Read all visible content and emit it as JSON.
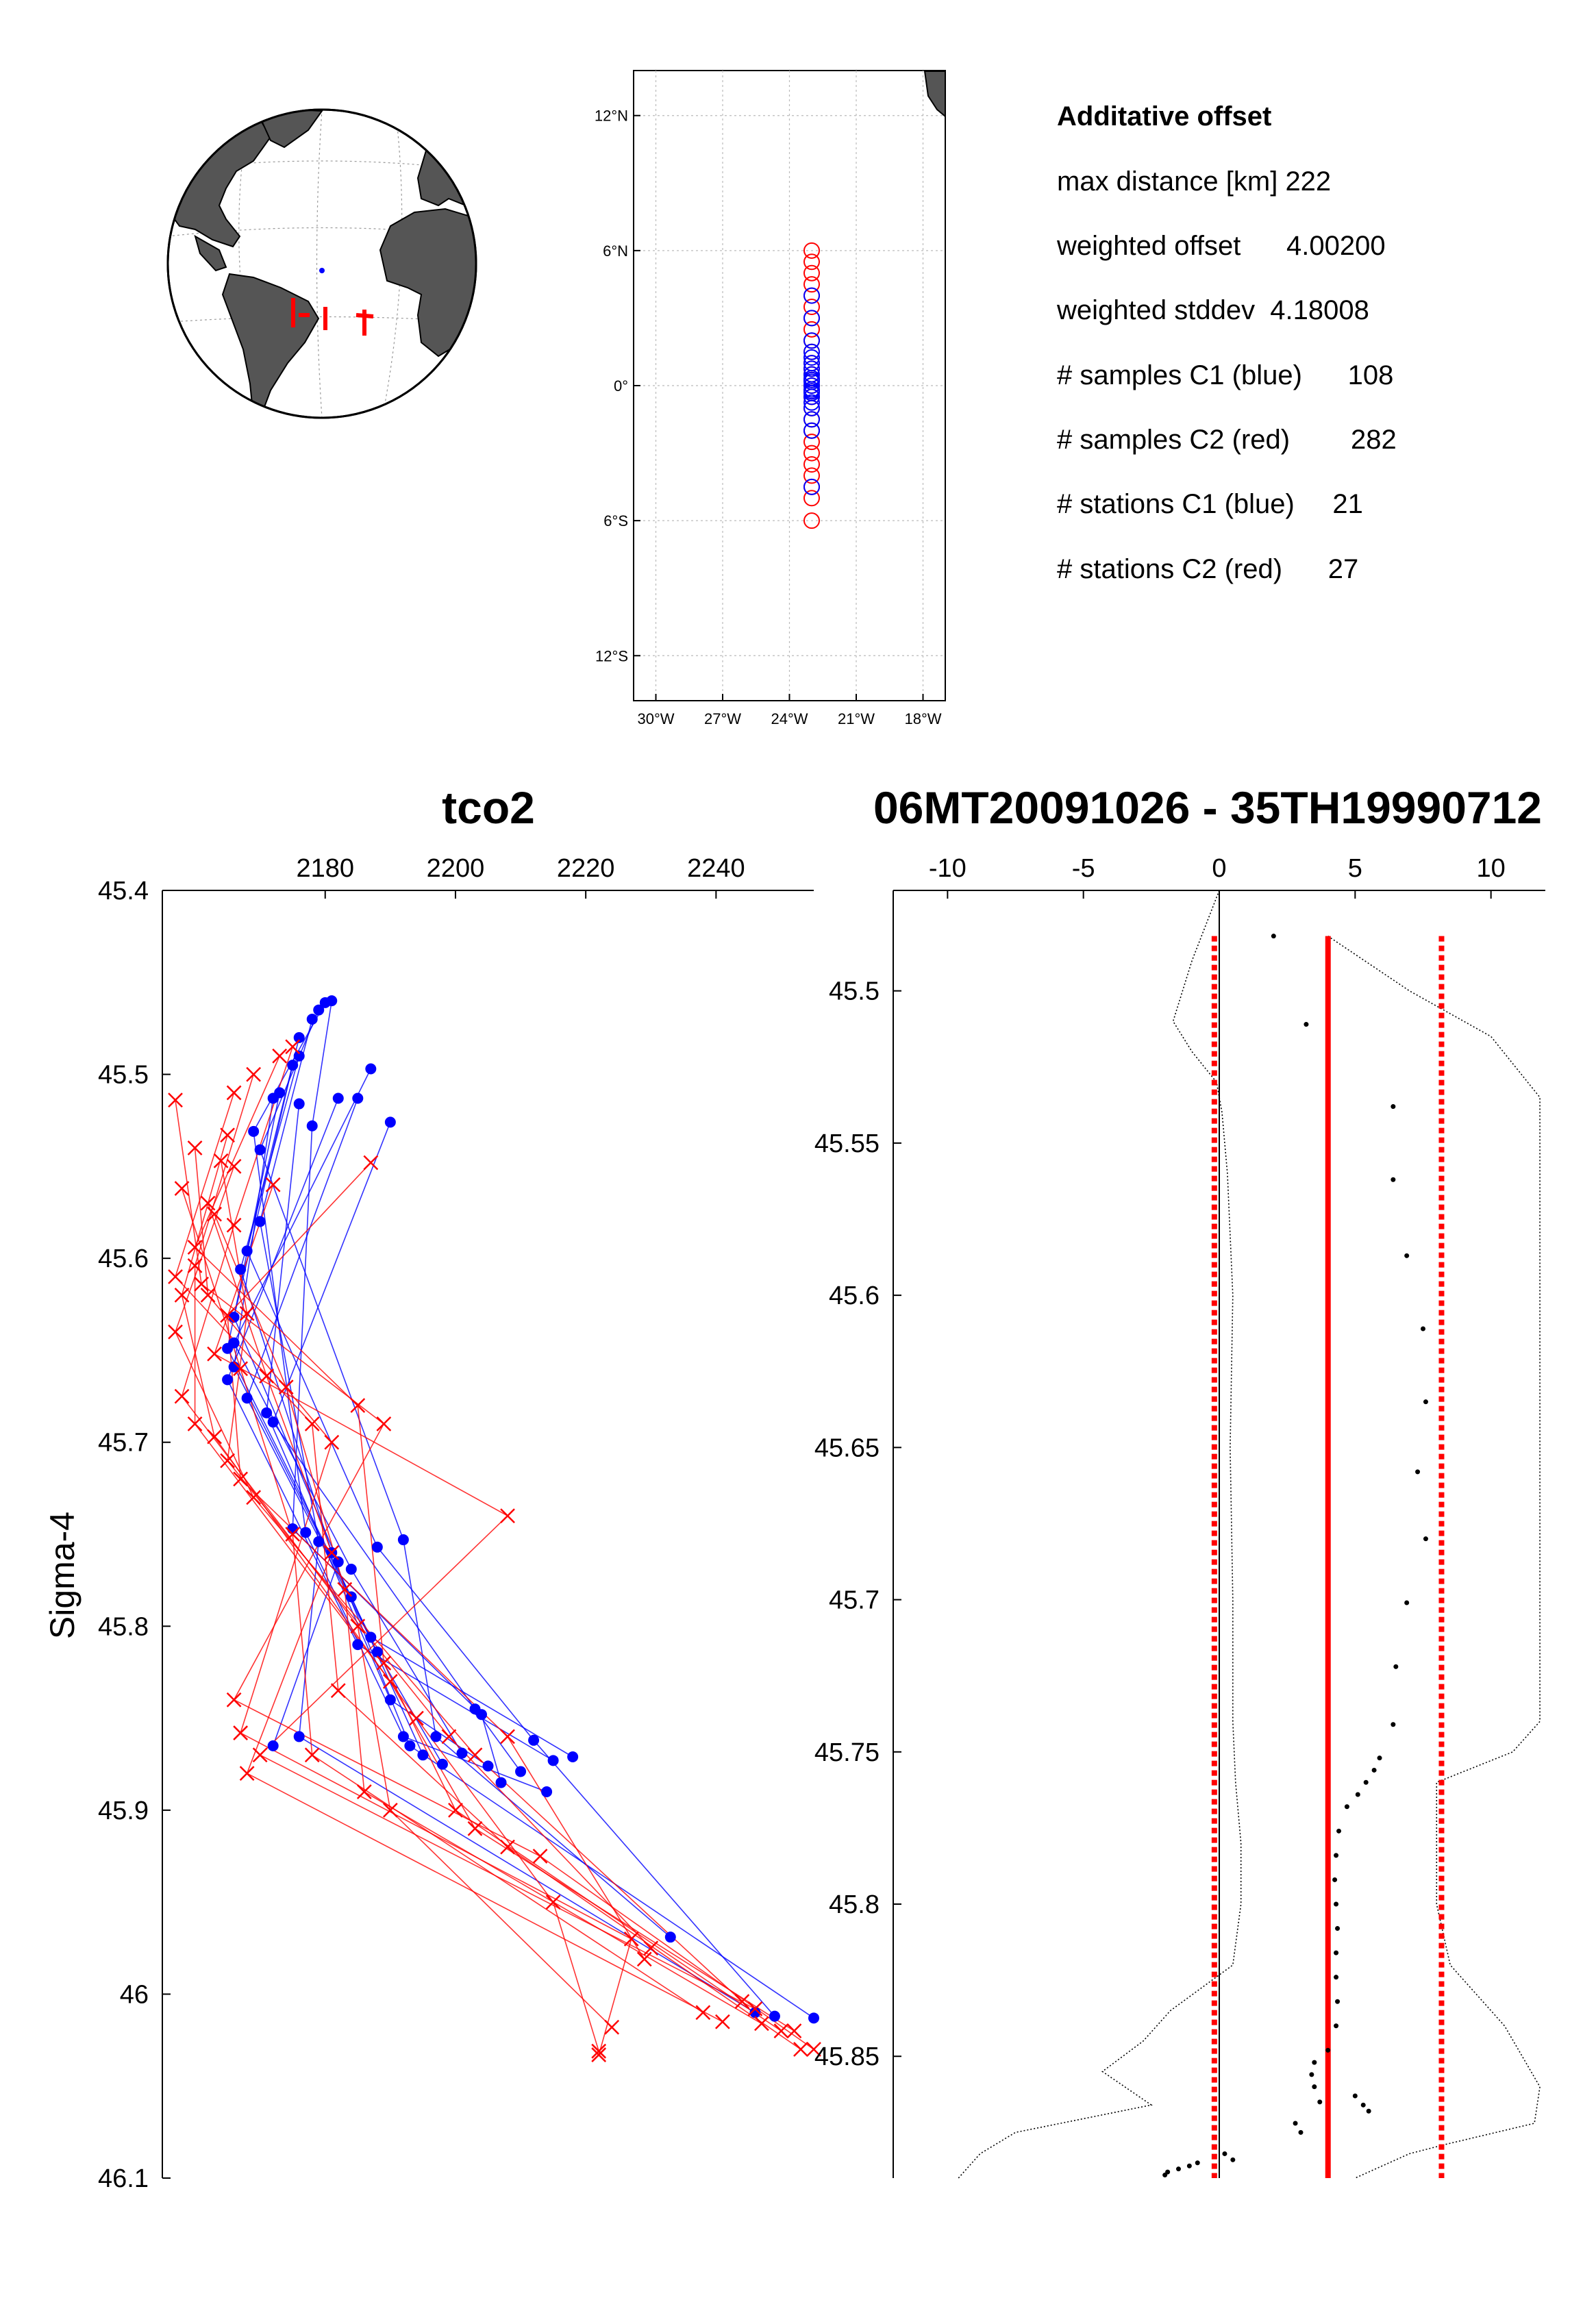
{
  "chart_data": [
    {
      "type": "map",
      "projection": "orthographic",
      "description_of_marks": "globe with gray continents; blue dot and red station marks near the equatorial Atlantic",
      "colors": {
        "ocean": "#ffffff",
        "land": "#555555",
        "c1": "#0000ff",
        "c2": "#ff0000"
      }
    },
    {
      "type": "scatter",
      "xlim": [
        -31,
        -17
      ],
      "ylim": [
        -14,
        14
      ],
      "x_ticks": [
        -30,
        -27,
        -24,
        -21,
        -18
      ],
      "x_tick_labels": [
        "30°W",
        "27°W",
        "24°W",
        "21°W",
        "18°W"
      ],
      "y_ticks": [
        12,
        6,
        0,
        -6,
        -12
      ],
      "y_tick_labels": [
        "12°N",
        "6°N",
        "0°",
        "6°S",
        "12°S"
      ],
      "grid": true,
      "series": [
        {
          "color": "#ff0000",
          "marker": "circle",
          "x": [
            -23,
            -23,
            -23,
            -23,
            -23,
            -23,
            -23,
            -23,
            -23,
            -23,
            -23,
            -23,
            -23,
            -23,
            -23,
            -23,
            -23,
            -23,
            -23,
            -23,
            -23,
            -23,
            -23,
            -23,
            -23,
            -23,
            -23
          ],
          "y": [
            6,
            5.5,
            5,
            4.5,
            4,
            3.5,
            3,
            2.5,
            2,
            1.5,
            1,
            0.75,
            0.5,
            0.25,
            0,
            -0.25,
            -0.5,
            -1,
            -1.5,
            -2,
            -2.5,
            -3,
            -3.5,
            -4,
            -4.5,
            -5,
            -6
          ]
        },
        {
          "color": "#0000ff",
          "marker": "circle",
          "x": [
            -23,
            -23,
            -23,
            -23,
            -23,
            -23,
            -23,
            -23,
            -23,
            -23,
            -23,
            -23,
            -23,
            -23,
            -23,
            -23,
            -23,
            -23,
            -23,
            -23,
            -23
          ],
          "y": [
            4,
            3,
            2,
            1.5,
            1.25,
            1,
            0.75,
            0.5,
            0.33,
            0.25,
            0.17,
            0,
            -0.17,
            -0.25,
            -0.33,
            -0.5,
            -0.75,
            -1,
            -1.5,
            -2,
            -4.5
          ]
        }
      ]
    },
    {
      "type": "text",
      "title": "Additative offset",
      "lines": [
        "max distance [km] 222",
        "weighted offset      4.00200",
        "weighted stddev  4.18008",
        "# samples C1 (blue)      108",
        "# samples C2 (red)        282",
        "# stations C1 (blue)     21",
        "# stations C2 (red)      27"
      ]
    },
    {
      "type": "line",
      "title": "tco2",
      "ylabel": "Sigma-4",
      "xlim": [
        2155,
        2255
      ],
      "ylim": [
        46.1,
        45.4
      ],
      "x_ticks": [
        2180,
        2200,
        2220,
        2240
      ],
      "y_ticks": [
        45.4,
        45.5,
        45.6,
        45.7,
        45.8,
        45.9,
        46,
        46.1
      ],
      "y_tick_labels": [
        "45.4",
        "45.5",
        "45.6",
        "45.7",
        "45.8",
        "45.9",
        "46",
        "46.1"
      ],
      "series": [
        {
          "name": "C1 (blue)",
          "color": "#0000ff",
          "marker": "dot",
          "points": [
            [
              2181,
              45.46
            ],
            [
              2180,
              45.461
            ],
            [
              2179,
              45.465
            ],
            [
              2178,
              45.47
            ],
            [
              2176,
              45.48
            ],
            [
              2176,
              45.49
            ],
            [
              2175,
              45.495
            ],
            [
              2173,
              45.51
            ],
            [
              2172,
              45.513
            ],
            [
              2176,
              45.516
            ],
            [
              2178,
              45.528
            ],
            [
              2182,
              45.513
            ],
            [
              2185,
              45.513
            ],
            [
              2187,
              45.497
            ],
            [
              2190,
              45.526
            ],
            [
              2169,
              45.531
            ],
            [
              2170,
              45.541
            ],
            [
              2170,
              45.58
            ],
            [
              2168,
              45.596
            ],
            [
              2167,
              45.606
            ],
            [
              2166,
              45.632
            ],
            [
              2166,
              45.646
            ],
            [
              2165,
              45.649
            ],
            [
              2166,
              45.659
            ],
            [
              2165,
              45.666
            ],
            [
              2168,
              45.676
            ],
            [
              2171,
              45.684
            ],
            [
              2172,
              45.689
            ],
            [
              2175,
              45.747
            ],
            [
              2177,
              45.749
            ],
            [
              2179,
              45.754
            ],
            [
              2181,
              45.76
            ],
            [
              2182,
              45.765
            ],
            [
              2184,
              45.769
            ],
            [
              2184,
              45.784
            ],
            [
              2187,
              45.806
            ],
            [
              2188,
              45.814
            ],
            [
              2185,
              45.81
            ],
            [
              2190,
              45.84
            ],
            [
              2192,
              45.86
            ],
            [
              2193,
              45.865
            ],
            [
              2195,
              45.87
            ],
            [
              2197,
              45.86
            ],
            [
              2198,
              45.875
            ],
            [
              2203,
              45.845
            ],
            [
              2204,
              45.848
            ],
            [
              2201,
              45.869
            ],
            [
              2205,
              45.876
            ],
            [
              2207,
              45.885
            ],
            [
              2212,
              45.862
            ],
            [
              2215,
              45.873
            ],
            [
              2210,
              45.879
            ],
            [
              2214,
              45.89
            ],
            [
              2218,
              45.871
            ],
            [
              2176,
              45.86
            ],
            [
              2172,
              45.865
            ],
            [
              2233,
              45.969
            ],
            [
              2246,
              46.01
            ],
            [
              2249,
              46.012
            ],
            [
              2255,
              46.013
            ],
            [
              2192,
              45.753
            ],
            [
              2188,
              45.757
            ]
          ]
        },
        {
          "name": "C2 (red)",
          "color": "#ff0000",
          "marker": "x",
          "points": [
            [
              2175,
              45.485
            ],
            [
              2173,
              45.49
            ],
            [
              2169,
              45.5
            ],
            [
              2166,
              45.51
            ],
            [
              2157,
              45.514
            ],
            [
              2165,
              45.533
            ],
            [
              2160,
              45.54
            ],
            [
              2164,
              45.547
            ],
            [
              2166,
              45.55
            ],
            [
              2172,
              45.56
            ],
            [
              2158,
              45.562
            ],
            [
              2162,
              45.57
            ],
            [
              2163,
              45.576
            ],
            [
              2166,
              45.582
            ],
            [
              2160,
              45.594
            ],
            [
              2160,
              45.604
            ],
            [
              2157,
              45.61
            ],
            [
              2161,
              45.614
            ],
            [
              2158,
              45.62
            ],
            [
              2162,
              45.62
            ],
            [
              2165,
              45.631
            ],
            [
              2168,
              45.63
            ],
            [
              2157,
              45.64
            ],
            [
              2163,
              45.652
            ],
            [
              2167,
              45.66
            ],
            [
              2171,
              45.664
            ],
            [
              2174,
              45.67
            ],
            [
              2158,
              45.675
            ],
            [
              2160,
              45.69
            ],
            [
              2163,
              45.697
            ],
            [
              2165,
              45.71
            ],
            [
              2167,
              45.72
            ],
            [
              2169,
              45.73
            ],
            [
              2178,
              45.69
            ],
            [
              2181,
              45.7
            ],
            [
              2185,
              45.68
            ],
            [
              2189,
              45.69
            ],
            [
              2208,
              45.74
            ],
            [
              2175,
              45.75
            ],
            [
              2181,
              45.76
            ],
            [
              2183,
              45.78
            ],
            [
              2185,
              45.8
            ],
            [
              2189,
              45.82
            ],
            [
              2182,
              45.835
            ],
            [
              2190,
              45.83
            ],
            [
              2194,
              45.85
            ],
            [
              2199,
              45.86
            ],
            [
              2203,
              45.87
            ],
            [
              2208,
              45.86
            ],
            [
              2166,
              45.84
            ],
            [
              2167,
              45.858
            ],
            [
              2170,
              45.87
            ],
            [
              2178,
              45.87
            ],
            [
              2168,
              45.88
            ],
            [
              2186,
              45.89
            ],
            [
              2190,
              45.9
            ],
            [
              2200,
              45.9
            ],
            [
              2203,
              45.91
            ],
            [
              2208,
              45.92
            ],
            [
              2213,
              45.925
            ],
            [
              2215,
              45.95
            ],
            [
              2227,
              45.97
            ],
            [
              2230,
              45.975
            ],
            [
              2229,
              45.981
            ],
            [
              2238,
              46.01
            ],
            [
              2241,
              46.015
            ],
            [
              2244,
              46.004
            ],
            [
              2246,
              46.008
            ],
            [
              2247,
              46.016
            ],
            [
              2250,
              46.02
            ],
            [
              2252,
              46.02
            ],
            [
              2253,
              46.03
            ],
            [
              2255,
              46.03
            ],
            [
              2224,
              46.018
            ],
            [
              2222,
              46.031
            ],
            [
              2222,
              46.033
            ],
            [
              2187,
              45.548
            ]
          ]
        }
      ]
    },
    {
      "type": "line",
      "title": "06MT20091026 - 35TH19990712",
      "xlim": [
        -12,
        12
      ],
      "ylim": [
        45.89,
        45.467
      ],
      "x_ticks": [
        -10,
        -5,
        0,
        5,
        10
      ],
      "y_ticks": [
        45.5,
        45.55,
        45.6,
        45.65,
        45.7,
        45.75,
        45.8,
        45.85
      ],
      "y_tick_labels": [
        "45.5",
        "45.55",
        "45.6",
        "45.65",
        "45.7",
        "45.75",
        "45.8",
        "45.85"
      ],
      "lines": [
        {
          "role": "zero",
          "color": "#000000",
          "x": 0
        },
        {
          "role": "weighted offset",
          "color": "#ff0000",
          "x": 4.002,
          "style": "solid"
        },
        {
          "role": "offset - stddev",
          "color": "#ff0000",
          "x": -0.18,
          "style": "dotted"
        },
        {
          "role": "offset + stddev",
          "color": "#ff0000",
          "x": 8.18,
          "style": "dotted"
        }
      ],
      "differences": [
        [
          2,
          45.482
        ],
        [
          3.2,
          45.511
        ],
        [
          6.4,
          45.538
        ],
        [
          6.4,
          45.562
        ],
        [
          6.9,
          45.587
        ],
        [
          7.5,
          45.611
        ],
        [
          7.6,
          45.635
        ],
        [
          7.3,
          45.658
        ],
        [
          7.6,
          45.68
        ],
        [
          6.9,
          45.701
        ],
        [
          6.5,
          45.722
        ],
        [
          6.4,
          45.741
        ],
        [
          5.9,
          45.752
        ],
        [
          5.7,
          45.756
        ],
        [
          5.4,
          45.76
        ],
        [
          5.1,
          45.764
        ],
        [
          4.7,
          45.768
        ],
        [
          4.4,
          45.776
        ],
        [
          4.3,
          45.784
        ],
        [
          4.25,
          45.792
        ],
        [
          4.3,
          45.8
        ],
        [
          4.35,
          45.808
        ],
        [
          4.3,
          45.816
        ],
        [
          4.3,
          45.824
        ],
        [
          4.35,
          45.832
        ],
        [
          4.3,
          45.84
        ],
        [
          4.0,
          45.848
        ],
        [
          3.5,
          45.852
        ],
        [
          3.4,
          45.856
        ],
        [
          3.5,
          45.86
        ],
        [
          3.7,
          45.865
        ],
        [
          5.0,
          45.863
        ],
        [
          5.3,
          45.866
        ],
        [
          5.5,
          45.868
        ],
        [
          3.0,
          45.875
        ],
        [
          2.8,
          45.872
        ],
        [
          0.2,
          45.882
        ],
        [
          0.5,
          45.884
        ],
        [
          -0.8,
          45.885
        ],
        [
          -1.1,
          45.886
        ],
        [
          -1.5,
          45.887
        ],
        [
          -1.9,
          45.888
        ],
        [
          -2.0,
          45.889
        ]
      ],
      "stddev_outline": {
        "color": "#000000",
        "style": "dotted",
        "left_y": [
          45.467,
          45.49,
          45.51,
          45.52,
          45.53,
          45.54,
          45.56,
          45.6,
          45.65,
          45.7,
          45.74,
          45.76,
          45.78,
          45.8,
          45.82,
          45.835,
          45.845,
          45.855,
          45.866,
          45.875,
          45.882,
          45.89
        ],
        "left_x": [
          0,
          -1.0,
          -1.7,
          -1.0,
          -0.1,
          0.1,
          0.3,
          0.5,
          0.4,
          0.5,
          0.5,
          0.6,
          0.8,
          0.8,
          0.5,
          -1.8,
          -2.8,
          -4.3,
          -2.5,
          -7.5,
          -8.8,
          -9.6
        ],
        "right_y": [
          45.482,
          45.5,
          45.515,
          45.535,
          45.74,
          45.75,
          45.76,
          45.8,
          45.82,
          45.84,
          45.86,
          45.872,
          45.879,
          45.882,
          45.89
        ],
        "right_x": [
          4.0,
          7.0,
          10.0,
          11.8,
          11.8,
          10.8,
          8.0,
          8.0,
          8.5,
          10.5,
          11.8,
          11.6,
          8.3,
          7.0,
          5.0
        ]
      }
    }
  ]
}
